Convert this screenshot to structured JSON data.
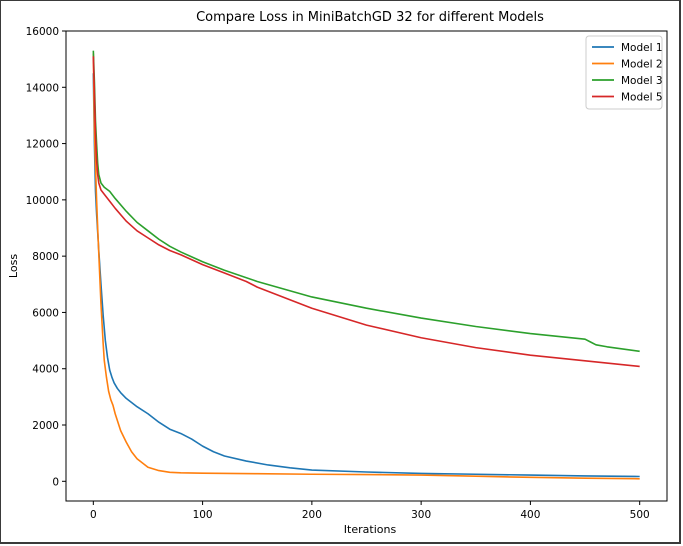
{
  "chart_data": {
    "type": "line",
    "title": "Compare Loss in MiniBatchGD 32 for different Models",
    "xlabel": "Iterations",
    "ylabel": "Loss",
    "xlim": [
      -25,
      525
    ],
    "ylim": [
      -700,
      16000
    ],
    "xticks": [
      0,
      100,
      200,
      300,
      400,
      500
    ],
    "yticks": [
      0,
      2000,
      4000,
      6000,
      8000,
      10000,
      12000,
      14000,
      16000
    ],
    "grid": false,
    "legend_position": "top-right",
    "series": [
      {
        "name": "Model 1",
        "color": "#1f77b4",
        "x": [
          0,
          1,
          2,
          3,
          5,
          7,
          9,
          11,
          13,
          15,
          17,
          19,
          22,
          25,
          30,
          35,
          40,
          50,
          60,
          70,
          80,
          90,
          100,
          110,
          120,
          140,
          160,
          180,
          200,
          250,
          300,
          350,
          400,
          450,
          500
        ],
        "y": [
          14500,
          12000,
          10300,
          9500,
          8200,
          7000,
          5900,
          5000,
          4400,
          3950,
          3700,
          3500,
          3300,
          3150,
          2950,
          2800,
          2650,
          2400,
          2100,
          1850,
          1700,
          1500,
          1250,
          1050,
          900,
          720,
          580,
          480,
          400,
          330,
          280,
          250,
          220,
          190,
          170
        ]
      },
      {
        "name": "Model 2",
        "color": "#ff7f0e",
        "x": [
          0,
          1,
          2,
          3,
          4,
          5,
          6,
          7,
          8,
          9,
          10,
          12,
          14,
          16,
          18,
          20,
          25,
          30,
          35,
          40,
          50,
          60,
          70,
          80,
          100,
          150,
          200,
          250,
          300,
          350,
          400,
          450,
          500
        ],
        "y": [
          15200,
          12500,
          11200,
          10000,
          9000,
          8100,
          7200,
          6300,
          5600,
          4900,
          4300,
          3700,
          3200,
          2900,
          2700,
          2400,
          1800,
          1400,
          1050,
          800,
          500,
          380,
          320,
          300,
          290,
          270,
          250,
          240,
          220,
          180,
          140,
          110,
          90
        ]
      },
      {
        "name": "Model 3",
        "color": "#2ca02c",
        "x": [
          0,
          1,
          2,
          3,
          4,
          5,
          7,
          10,
          15,
          20,
          30,
          40,
          50,
          60,
          70,
          80,
          100,
          120,
          150,
          200,
          250,
          300,
          350,
          400,
          450,
          455,
          460,
          470,
          500
        ],
        "y": [
          15300,
          14200,
          12800,
          12000,
          11300,
          10900,
          10600,
          10450,
          10300,
          10050,
          9600,
          9200,
          8900,
          8600,
          8350,
          8150,
          7800,
          7500,
          7100,
          6550,
          6150,
          5800,
          5500,
          5250,
          5050,
          4950,
          4850,
          4780,
          4620
        ]
      },
      {
        "name": "Model 5",
        "color": "#d62728",
        "x": [
          0,
          1,
          2,
          3,
          4,
          5,
          7,
          10,
          15,
          20,
          30,
          40,
          50,
          60,
          70,
          80,
          100,
          120,
          140,
          150,
          200,
          250,
          300,
          350,
          400,
          450,
          500
        ],
        "y": [
          15100,
          13800,
          12300,
          11400,
          10900,
          10600,
          10350,
          10200,
          9950,
          9700,
          9250,
          8900,
          8650,
          8400,
          8200,
          8050,
          7700,
          7400,
          7100,
          6900,
          6150,
          5550,
          5100,
          4750,
          4480,
          4280,
          4080
        ]
      }
    ]
  }
}
